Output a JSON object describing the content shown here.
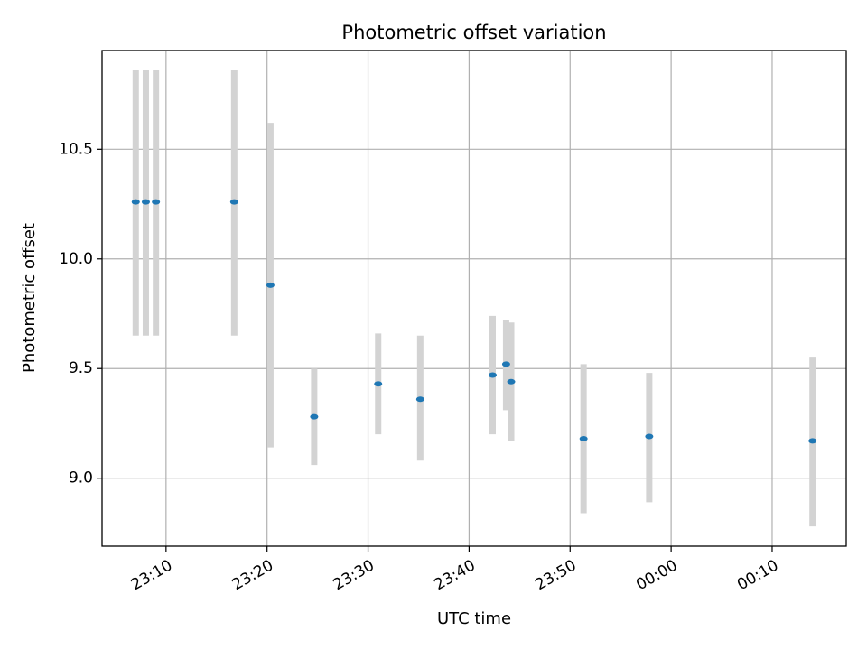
{
  "chart_data": {
    "type": "scatter",
    "title": "Photometric offset variation",
    "xlabel": "UTC time",
    "ylabel": "Photometric offset",
    "x_tick_labels": [
      "23:10",
      "23:20",
      "23:30",
      "23:40",
      "23:50",
      "00:00",
      "00:10"
    ],
    "x_tick_values": [
      "23:10",
      "23:20",
      "23:30",
      "23:40",
      "23:50",
      "00:00",
      "00:10"
    ],
    "y_ticks": [
      9.0,
      9.5,
      10.0,
      10.5
    ],
    "xlim": [
      "23:03:40",
      "00:17:20"
    ],
    "ylim": [
      8.69,
      10.95
    ],
    "grid": true,
    "colors": {
      "marker": "#1f77b4",
      "errorbar": "#d3d3d3",
      "grid": "#b0b0b0"
    },
    "points": [
      {
        "x": "23:07:00",
        "y": 10.26,
        "ylow": 9.65,
        "yhigh": 10.86
      },
      {
        "x": "23:08:00",
        "y": 10.26,
        "ylow": 9.65,
        "yhigh": 10.86
      },
      {
        "x": "23:09:00",
        "y": 10.26,
        "ylow": 9.65,
        "yhigh": 10.86
      },
      {
        "x": "23:16:45",
        "y": 10.26,
        "ylow": 9.65,
        "yhigh": 10.86
      },
      {
        "x": "23:20:20",
        "y": 9.88,
        "ylow": 9.14,
        "yhigh": 10.62
      },
      {
        "x": "23:24:40",
        "y": 9.28,
        "ylow": 9.06,
        "yhigh": 9.5
      },
      {
        "x": "23:31:00",
        "y": 9.43,
        "ylow": 9.2,
        "yhigh": 9.66
      },
      {
        "x": "23:35:10",
        "y": 9.36,
        "ylow": 9.08,
        "yhigh": 9.65
      },
      {
        "x": "23:42:20",
        "y": 9.47,
        "ylow": 9.2,
        "yhigh": 9.74
      },
      {
        "x": "23:43:40",
        "y": 9.52,
        "ylow": 9.31,
        "yhigh": 9.72
      },
      {
        "x": "23:44:10",
        "y": 9.44,
        "ylow": 9.17,
        "yhigh": 9.71
      },
      {
        "x": "23:51:20",
        "y": 9.18,
        "ylow": 8.84,
        "yhigh": 9.52
      },
      {
        "x": "23:57:50",
        "y": 9.19,
        "ylow": 8.89,
        "yhigh": 9.48
      },
      {
        "x": "00:14:00",
        "y": 9.17,
        "ylow": 8.78,
        "yhigh": 9.55
      }
    ]
  }
}
